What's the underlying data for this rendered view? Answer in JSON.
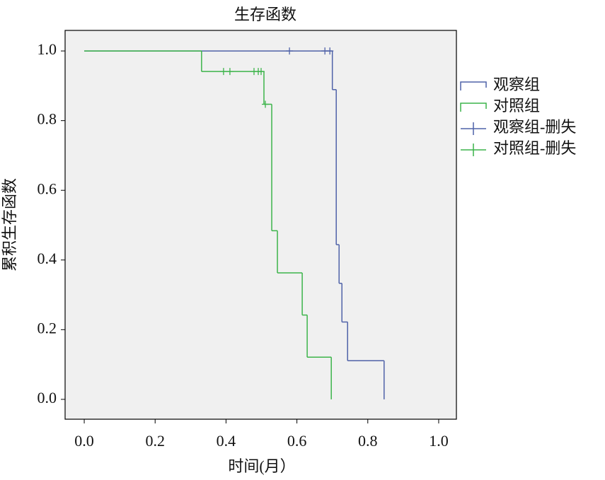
{
  "chart_data": {
    "type": "step",
    "title": "生存函数",
    "x_label": "时间(月）",
    "y_label": "累积生存函数",
    "xlim": [
      -0.054,
      1.05
    ],
    "ylim": [
      -0.057,
      1.059
    ],
    "xticks": [
      {
        "value": 0,
        "label": "0.0"
      },
      {
        "value": 0.2,
        "label": "0.2"
      },
      {
        "value": 0.4,
        "label": "0.4"
      },
      {
        "value": 0.6,
        "label": "0.6"
      },
      {
        "value": 0.8,
        "label": "0.8"
      },
      {
        "value": 1,
        "label": "1.0"
      }
    ],
    "yticks": [
      {
        "value": 0,
        "label": "0.0"
      },
      {
        "value": 0.2,
        "label": "0.2"
      },
      {
        "value": 0.4,
        "label": "0.4"
      },
      {
        "value": 0.6,
        "label": "0.6"
      },
      {
        "value": 0.8,
        "label": "0.8"
      },
      {
        "value": 1,
        "label": "1.0"
      }
    ],
    "legend": "right",
    "series": [
      {
        "name": "观察组",
        "color": "#4f62a8",
        "kind": "survival",
        "x": [
          0,
          0.7,
          0.711,
          0.719,
          0.727,
          0.743,
          0.846
        ],
        "values": [
          1,
          0.889,
          0.444,
          0.333,
          0.222,
          0.111,
          0
        ]
      },
      {
        "name": "对照组",
        "color": "#3cb44a",
        "kind": "survival",
        "x": [
          0,
          0.331,
          0.507,
          0.529,
          0.545,
          0.615,
          0.629,
          0.697
        ],
        "values": [
          1,
          0.941,
          0.847,
          0.484,
          0.363,
          0.242,
          0.121,
          0
        ]
      },
      {
        "name": "观察组-删失",
        "color": "#4f62a8",
        "kind": "censored",
        "x": [
          0.579,
          0.679,
          0.693
        ],
        "values": [
          1,
          1,
          1
        ]
      },
      {
        "name": "对照组-删失",
        "color": "#3cb44a",
        "kind": "censored",
        "x": [
          0.393,
          0.411,
          0.479,
          0.491,
          0.499,
          0.511
        ],
        "values": [
          0.941,
          0.941,
          0.941,
          0.941,
          0.941,
          0.847
        ]
      }
    ]
  }
}
